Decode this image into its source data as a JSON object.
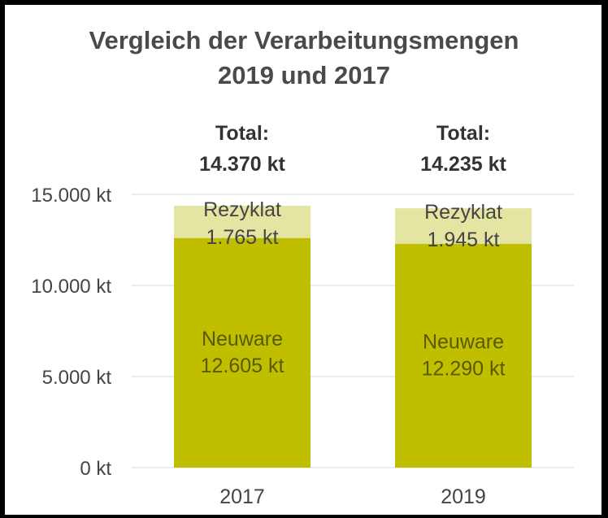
{
  "chart_data": {
    "type": "bar",
    "stacked": true,
    "title_lines": [
      "Vergleich der Verarbeitungsmengen",
      "2019 und 2017"
    ],
    "categories": [
      "2017",
      "2019"
    ],
    "series": [
      {
        "values": [
          12605,
          12290
        ],
        "color": "#bfbf00",
        "label_name": "Neuware",
        "value_labels": [
          "12.605 kt",
          "12.290 kt"
        ],
        "label_color": "#595900"
      },
      {
        "values": [
          1765,
          1945
        ],
        "color": "#e5e5a3",
        "label_name": "Rezyklat",
        "value_labels": [
          "1.765 kt",
          "1.945 kt"
        ],
        "label_color": "#444444"
      }
    ],
    "totals": [
      {
        "label": "Total:",
        "value": "14.370 kt"
      },
      {
        "label": "Total:",
        "value": "14.235 kt"
      }
    ],
    "y_ticks": [
      {
        "value": 0,
        "label": "0 kt"
      },
      {
        "value": 5000,
        "label": "5.000 kt"
      },
      {
        "value": 10000,
        "label": "10.000 kt"
      },
      {
        "value": 15000,
        "label": "15.000 kt"
      }
    ],
    "ylim": [
      0,
      15000
    ],
    "grid": true,
    "legend": "none",
    "background": "#ffffff",
    "border_color": "#000000"
  }
}
